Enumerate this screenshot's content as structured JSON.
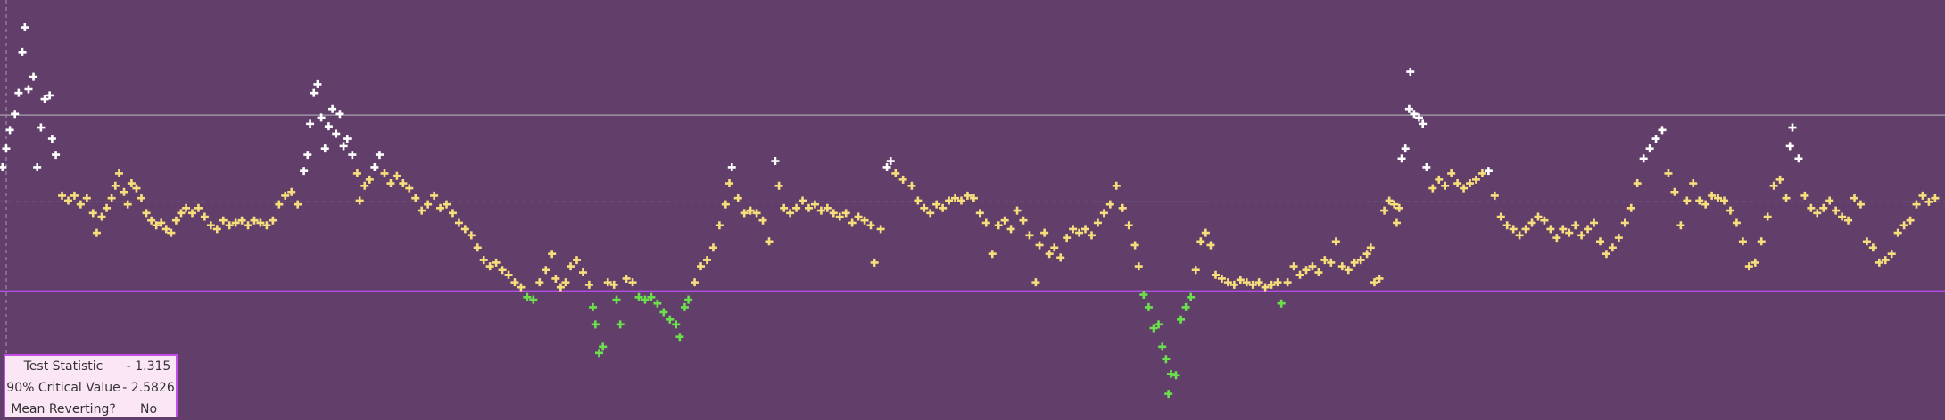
{
  "chart_data": {
    "type": "scatter",
    "xlim": [
      0,
      1568
    ],
    "ylim": [
      0,
      337
    ],
    "hlines": [
      244,
      174,
      102
    ],
    "series": [
      {
        "color": "#ffffff",
        "x": [
          2,
          5,
          8,
          12,
          15,
          18,
          20,
          23,
          27,
          30,
          33,
          36,
          40,
          42,
          45,
          245,
          248,
          250,
          253,
          256,
          259,
          262,
          265,
          268,
          271,
          274,
          277,
          280,
          284,
          302,
          306,
          590,
          625,
          715,
          718,
          1130,
          1133,
          1137,
          1136,
          1140,
          1144,
          1147,
          1150,
          1200,
          1325,
          1330,
          1335,
          1340,
          1443,
          1445,
          1450
        ],
        "values": [
          202,
          217,
          232,
          245,
          262,
          295,
          315,
          265,
          275,
          202,
          234,
          257,
          260,
          225,
          212,
          199,
          212,
          237,
          262,
          269,
          242,
          217,
          235,
          249,
          229,
          245,
          219,
          225,
          212,
          202,
          212,
          202,
          207,
          202,
          207,
          209,
          217,
          279,
          249,
          245,
          242,
          237,
          202,
          199,
          209,
          217,
          225,
          232,
          219,
          234,
          209
        ]
      },
      {
        "color": "#f7de7c",
        "x": [
          50,
          55,
          60,
          65,
          70,
          75,
          78,
          82,
          86,
          90,
          93,
          96,
          100,
          103,
          106,
          110,
          114,
          118,
          122,
          126,
          130,
          134,
          138,
          142,
          146,
          150,
          155,
          160,
          165,
          170,
          175,
          180,
          185,
          190,
          195,
          200,
          205,
          210,
          215,
          220,
          225,
          230,
          235,
          240,
          288,
          290,
          294,
          298,
          310,
          315,
          320,
          325,
          330,
          335,
          340,
          345,
          350,
          355,
          360,
          365,
          370,
          375,
          380,
          385,
          390,
          395,
          400,
          405,
          410,
          415,
          420,
          435,
          440,
          445,
          448,
          452,
          456,
          460,
          465,
          470,
          475,
          490,
          495,
          505,
          510,
          560,
          565,
          570,
          575,
          580,
          585,
          588,
          595,
          600,
          605,
          610,
          615,
          620,
          628,
          632,
          637,
          642,
          647,
          652,
          657,
          662,
          667,
          672,
          677,
          682,
          687,
          692,
          697,
          702,
          705,
          710,
          722,
          728,
          735,
          740,
          745,
          750,
          755,
          760,
          765,
          770,
          775,
          780,
          785,
          790,
          795,
          800,
          805,
          810,
          815,
          820,
          825,
          830,
          835,
          838,
          842,
          846,
          850,
          855,
          860,
          865,
          870,
          875,
          880,
          885,
          890,
          895,
          900,
          905,
          910,
          915,
          918,
          964,
          968,
          972,
          976,
          980,
          985,
          990,
          995,
          1000,
          1005,
          1010,
          1015,
          1020,
          1025,
          1030,
          1038,
          1043,
          1048,
          1053,
          1058,
          1063,
          1068,
          1073,
          1077,
          1082,
          1087,
          1092,
          1097,
          1102,
          1105,
          1108,
          1112,
          1116,
          1120,
          1124,
          1128,
          1126,
          1155,
          1160,
          1165,
          1170,
          1175,
          1180,
          1185,
          1190,
          1195,
          1205,
          1210,
          1215,
          1220,
          1225,
          1230,
          1235,
          1240,
          1245,
          1250,
          1255,
          1260,
          1265,
          1270,
          1275,
          1280,
          1285,
          1290,
          1295,
          1300,
          1305,
          1310,
          1315,
          1320,
          1345,
          1350,
          1355,
          1360,
          1365,
          1370,
          1375,
          1380,
          1385,
          1390,
          1395,
          1400,
          1405,
          1410,
          1415,
          1420,
          1425,
          1430,
          1435,
          1440,
          1455,
          1460,
          1465,
          1470,
          1475,
          1480,
          1485,
          1490,
          1495,
          1500,
          1505,
          1510,
          1515,
          1520,
          1525,
          1530,
          1535,
          1540,
          1545,
          1550,
          1555,
          1560
        ],
        "values": [
          179,
          175,
          179,
          172,
          177,
          165,
          149,
          162,
          169,
          177,
          187,
          197,
          182,
          172,
          189,
          185,
          177,
          165,
          159,
          155,
          157,
          152,
          149,
          159,
          165,
          169,
          165,
          169,
          162,
          155,
          152,
          159,
          155,
          157,
          159,
          155,
          159,
          157,
          155,
          159,
          172,
          179,
          182,
          172,
          197,
          175,
          187,
          192,
          197,
          189,
          195,
          189,
          185,
          177,
          167,
          172,
          179,
          169,
          172,
          165,
          157,
          152,
          147,
          137,
          127,
          122,
          125,
          119,
          115,
          109,
          105,
          109,
          119,
          132,
          112,
          105,
          109,
          122,
          127,
          117,
          107,
          109,
          107,
          112,
          109,
          109,
          122,
          127,
          137,
          155,
          172,
          189,
          177,
          165,
          167,
          165,
          159,
          142,
          187,
          169,
          165,
          169,
          175,
          169,
          172,
          167,
          169,
          165,
          162,
          165,
          157,
          162,
          159,
          155,
          125,
          152,
          197,
          192,
          187,
          175,
          169,
          165,
          172,
          169,
          175,
          177,
          175,
          179,
          177,
          165,
          157,
          132,
          155,
          159,
          152,
          167,
          159,
          147,
          109,
          139,
          149,
          132,
          137,
          129,
          145,
          152,
          149,
          152,
          147,
          157,
          165,
          172,
          187,
          169,
          155,
          139,
          122,
          119,
          142,
          149,
          139,
          115,
          112,
          109,
          107,
          111,
          109,
          107,
          109,
          105,
          107,
          109,
          109,
          122,
          115,
          119,
          122,
          117,
          127,
          125,
          142,
          122,
          119,
          125,
          127,
          132,
          137,
          109,
          112,
          167,
          175,
          172,
          169,
          157,
          185,
          192,
          187,
          197,
          189,
          185,
          189,
          192,
          197,
          179,
          162,
          155,
          152,
          147,
          152,
          157,
          162,
          159,
          152,
          145,
          152,
          149,
          155,
          147,
          152,
          157,
          142,
          132,
          137,
          145,
          157,
          169,
          189,
          197,
          182,
          155,
          175,
          189,
          175,
          172,
          179,
          177,
          175,
          167,
          157,
          142,
          122,
          125,
          142,
          162,
          187,
          192,
          177,
          179,
          169,
          165,
          169,
          175,
          167,
          162,
          159,
          177,
          172,
          142,
          137,
          125,
          127,
          132,
          149,
          155,
          159,
          172,
          179,
          174,
          177
        ]
      },
      {
        "color": "#6be04c",
        "x": [
          425,
          430,
          478,
          480,
          483,
          486,
          497,
          500,
          515,
          520,
          525,
          530,
          535,
          540,
          545,
          548,
          552,
          555,
          922,
          926,
          930,
          934,
          937,
          940,
          944,
          948,
          942,
          952,
          956,
          960,
          1033
        ],
        "values": [
          97,
          95,
          89,
          75,
          52,
          57,
          95,
          75,
          97,
          95,
          97,
          92,
          85,
          79,
          75,
          65,
          89,
          95,
          99,
          89,
          72,
          75,
          57,
          47,
          35,
          34,
          19,
          79,
          89,
          97,
          92
        ]
      }
    ]
  },
  "table": {
    "rows": [
      [
        "Test Statistic",
        "- 1.315"
      ],
      [
        "90% Critical Value",
        "- 2.5826"
      ],
      [
        "Mean Reverting?",
        "No"
      ]
    ]
  }
}
